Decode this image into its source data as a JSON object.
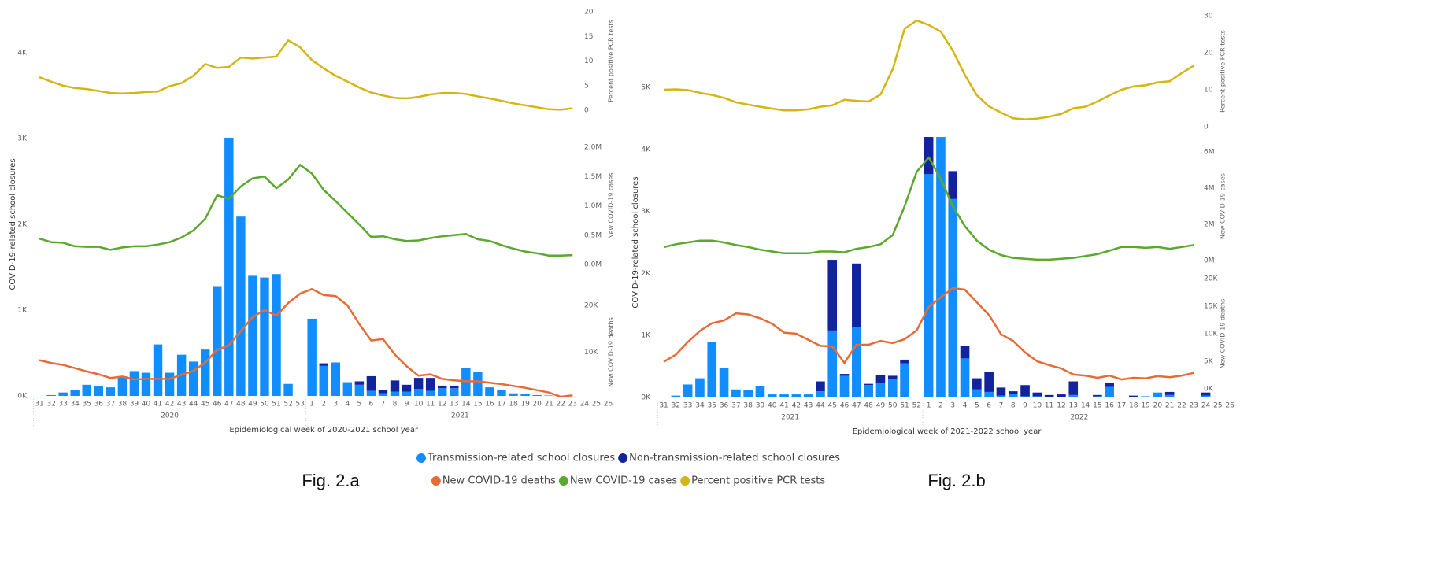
{
  "chart_data": [
    {
      "type": "combo",
      "caption": "Fig. 2.a",
      "ytitle": "COVID-19-related school closures",
      "xtitle": "Epidemiological week of 2020-2021 school year",
      "categories": [
        "31",
        "32",
        "33",
        "34",
        "35",
        "36",
        "37",
        "38",
        "39",
        "40",
        "41",
        "42",
        "43",
        "44",
        "45",
        "46",
        "47",
        "48",
        "49",
        "50",
        "51",
        "52",
        "53",
        "1",
        "2",
        "3",
        "4",
        "5",
        "6",
        "7",
        "8",
        "9",
        "10",
        "11",
        "12",
        "13",
        "14",
        "15",
        "16",
        "17",
        "18",
        "19",
        "20",
        "21",
        "22",
        "23",
        "24",
        "25",
        "26"
      ],
      "x_groups": [
        "2020",
        "2021"
      ],
      "ylim": [
        0,
        4000
      ],
      "yticks": [
        {
          "value": 0,
          "label": "0K"
        },
        {
          "value": 1000,
          "label": "1K"
        },
        {
          "value": 2000,
          "label": "2K"
        },
        {
          "value": 3000,
          "label": "3K"
        },
        {
          "value": 4000,
          "label": "4K"
        }
      ],
      "right_axes": [
        {
          "title": "New COVID-19 deaths",
          "ylim": [
            0,
            20000
          ],
          "yticks": [
            {
              "value": 10000,
              "label": "10K"
            },
            {
              "value": 20000,
              "label": "20K"
            }
          ]
        },
        {
          "title": "New COVID-19 cases",
          "ylim": [
            0,
            2000000
          ],
          "yticks": [
            {
              "value": 0,
              "label": "0.0M"
            },
            {
              "value": 500000,
              "label": "0.5M"
            },
            {
              "value": 1000000,
              "label": "1.0M"
            },
            {
              "value": 1500000,
              "label": "1.5M"
            },
            {
              "value": 2000000,
              "label": "2.0M"
            }
          ]
        },
        {
          "title": "Percent positive PCR tests",
          "ylim": [
            0,
            20
          ],
          "yticks": [
            0,
            5,
            10,
            15,
            20
          ]
        }
      ],
      "series": [
        {
          "name": "Transmission-related school closures",
          "type": "bar",
          "color": "#118dff",
          "values": [
            0,
            10,
            40,
            70,
            130,
            110,
            100,
            230,
            290,
            270,
            600,
            270,
            480,
            400,
            540,
            1280,
            3010,
            2090,
            1400,
            1380,
            1420,
            140,
            0,
            900,
            350,
            390,
            160,
            130,
            60,
            30,
            50,
            50,
            80,
            60,
            90,
            90,
            330,
            280,
            100,
            70,
            30,
            20,
            10,
            5,
            0,
            0,
            0,
            0,
            0
          ]
        },
        {
          "name": "Non-transmission-related school closures",
          "type": "bar",
          "color": "#12239e",
          "values": [
            0,
            0,
            0,
            0,
            0,
            0,
            0,
            0,
            0,
            0,
            0,
            0,
            0,
            0,
            0,
            0,
            0,
            0,
            0,
            0,
            0,
            0,
            0,
            0,
            30,
            0,
            0,
            40,
            170,
            40,
            130,
            80,
            130,
            150,
            30,
            30,
            0,
            0,
            0,
            0,
            0,
            0,
            0,
            0,
            0,
            0,
            0,
            0,
            0
          ]
        },
        {
          "name": "New COVID-19 deaths",
          "type": "line",
          "axis": 0,
          "color": "#e66c37",
          "values": [
            8300,
            7700,
            7300,
            6600,
            5900,
            5300,
            4500,
            4800,
            4200,
            4300,
            4300,
            4300,
            5200,
            6000,
            7800,
            10500,
            11500,
            14500,
            17500,
            19000,
            17800,
            20500,
            22500,
            23500,
            22200,
            22000,
            20000,
            16000,
            12500,
            12800,
            9500,
            7000,
            5000,
            5300,
            4300,
            4000,
            3800,
            3800,
            3500,
            3200,
            2800,
            2400,
            1900,
            1400,
            500,
            800,
            null,
            null,
            null
          ]
        },
        {
          "name": "New COVID-19 cases",
          "type": "line",
          "axis": 1,
          "color": "#5aa82e",
          "values": [
            440000,
            380000,
            370000,
            310000,
            300000,
            300000,
            250000,
            290000,
            310000,
            310000,
            340000,
            380000,
            460000,
            580000,
            780000,
            1180000,
            1120000,
            1330000,
            1470000,
            1500000,
            1300000,
            1450000,
            1700000,
            1550000,
            1270000,
            1080000,
            880000,
            680000,
            470000,
            480000,
            430000,
            400000,
            410000,
            450000,
            480000,
            500000,
            520000,
            430000,
            400000,
            330000,
            270000,
            220000,
            190000,
            150000,
            150000,
            160000,
            null,
            null,
            null
          ]
        },
        {
          "name": "Percent positive PCR tests",
          "type": "line",
          "axis": 2,
          "color": "#d4b514",
          "values": [
            6.7,
            5.8,
            5.0,
            4.5,
            4.3,
            3.9,
            3.5,
            3.4,
            3.5,
            3.7,
            3.8,
            4.9,
            5.5,
            7.0,
            9.4,
            8.6,
            8.8,
            10.7,
            10.5,
            10.7,
            10.9,
            14.2,
            12.8,
            10.2,
            8.5,
            7.0,
            5.8,
            4.6,
            3.6,
            3.0,
            2.5,
            2.4,
            2.7,
            3.2,
            3.5,
            3.5,
            3.3,
            2.8,
            2.4,
            1.9,
            1.4,
            1.0,
            0.6,
            0.2,
            0.1,
            0.4,
            null,
            null,
            null
          ]
        }
      ]
    },
    {
      "type": "combo",
      "caption": "Fig. 2.b",
      "ytitle": "COVID-19-related school closures",
      "xtitle": "Epidemiological week of 2021-2022 school year",
      "categories": [
        "31",
        "32",
        "33",
        "34",
        "35",
        "36",
        "37",
        "38",
        "39",
        "40",
        "41",
        "42",
        "43",
        "44",
        "45",
        "46",
        "47",
        "48",
        "49",
        "50",
        "51",
        "52",
        "1",
        "2",
        "3",
        "4",
        "5",
        "6",
        "7",
        "8",
        "9",
        "10",
        "11",
        "12",
        "13",
        "14",
        "15",
        "16",
        "17",
        "18",
        "19",
        "20",
        "21",
        "22",
        "23",
        "24",
        "25",
        "26"
      ],
      "x_groups": [
        "2021",
        "2022"
      ],
      "ylim": [
        0,
        5000
      ],
      "yticks": [
        {
          "value": 0,
          "label": "0K"
        },
        {
          "value": 1000,
          "label": "1K"
        },
        {
          "value": 2000,
          "label": "2K"
        },
        {
          "value": 3000,
          "label": "3K"
        },
        {
          "value": 4000,
          "label": "4K"
        },
        {
          "value": 5000,
          "label": "5K"
        }
      ],
      "right_axes": [
        {
          "title": "New COVID-19 deaths",
          "ylim": [
            0,
            20000
          ],
          "yticks": [
            {
              "value": 0,
              "label": "0K"
            },
            {
              "value": 5000,
              "label": "5K"
            },
            {
              "value": 10000,
              "label": "10K"
            },
            {
              "value": 15000,
              "label": "15K"
            },
            {
              "value": 20000,
              "label": "20K"
            }
          ]
        },
        {
          "title": "New COVID-19 cases",
          "ylim": [
            0,
            6000000
          ],
          "yticks": [
            {
              "value": 0,
              "label": "0M"
            },
            {
              "value": 2000000,
              "label": "2M"
            },
            {
              "value": 4000000,
              "label": "4M"
            },
            {
              "value": 6000000,
              "label": "6M"
            }
          ]
        },
        {
          "title": "Percent positive PCR tests",
          "ylim": [
            0,
            30
          ],
          "yticks": [
            0,
            10,
            20,
            30
          ]
        }
      ],
      "series": [
        {
          "type": "bar",
          "color": "#118dff",
          "values": [
            10,
            30,
            210,
            310,
            890,
            470,
            130,
            120,
            180,
            50,
            50,
            50,
            50,
            100,
            1080,
            350,
            1140,
            200,
            240,
            300,
            550,
            0,
            3600,
            4200,
            3200,
            630,
            130,
            90,
            30,
            50,
            20,
            20,
            10,
            10,
            40,
            5,
            20,
            170,
            0,
            10,
            20,
            80,
            40,
            0,
            0,
            30,
            0,
            0
          ]
        },
        {
          "type": "bar",
          "color": "#12239e",
          "values": [
            0,
            0,
            0,
            0,
            0,
            0,
            0,
            0,
            0,
            0,
            0,
            0,
            0,
            160,
            1140,
            30,
            1020,
            20,
            120,
            50,
            60,
            0,
            600,
            0,
            450,
            200,
            180,
            320,
            130,
            50,
            180,
            60,
            30,
            40,
            220,
            0,
            20,
            70,
            0,
            20,
            0,
            0,
            50,
            0,
            0,
            50,
            0,
            0
          ]
        },
        {
          "type": "line",
          "axis": 0,
          "color": "#e66c37",
          "values": [
            4900,
            6200,
            8500,
            10500,
            11900,
            12400,
            13700,
            13500,
            12800,
            11800,
            10200,
            10000,
            8900,
            7800,
            7700,
            4700,
            8000,
            8000,
            8700,
            8300,
            9000,
            10600,
            14900,
            16600,
            18300,
            18000,
            15700,
            13400,
            9900,
            8700,
            6600,
            5000,
            4300,
            3700,
            2600,
            2400,
            2000,
            2400,
            1700,
            2000,
            1900,
            2300,
            2100,
            2400,
            2900,
            null,
            null,
            null
          ]
        },
        {
          "type": "line",
          "axis": 1,
          "color": "#5aa82e",
          "values": [
            740000,
            900000,
            1000000,
            1100000,
            1100000,
            1000000,
            850000,
            750000,
            600000,
            500000,
            400000,
            400000,
            400000,
            500000,
            500000,
            450000,
            650000,
            750000,
            900000,
            1400000,
            3000000,
            4900000,
            5700000,
            4500000,
            3000000,
            1900000,
            1100000,
            600000,
            300000,
            150000,
            100000,
            50000,
            50000,
            100000,
            150000,
            250000,
            350000,
            550000,
            750000,
            750000,
            700000,
            750000,
            650000,
            750000,
            850000,
            null,
            null,
            null
          ]
        },
        {
          "type": "line",
          "axis": 2,
          "color": "#d4b514",
          "values": [
            10.0,
            10.1,
            9.9,
            9.2,
            8.6,
            7.8,
            6.6,
            6.0,
            5.4,
            4.9,
            4.4,
            4.4,
            4.7,
            5.4,
            5.8,
            7.3,
            7.0,
            6.8,
            8.7,
            15.5,
            26.5,
            28.7,
            27.5,
            25.7,
            20.5,
            14.0,
            8.5,
            5.5,
            3.8,
            2.3,
            2.0,
            2.2,
            2.7,
            3.5,
            5.0,
            5.4,
            6.8,
            8.5,
            10.0,
            10.9,
            11.2,
            12.0,
            12.3,
            14.5,
            16.5,
            null,
            null,
            null
          ]
        }
      ]
    }
  ]
}
